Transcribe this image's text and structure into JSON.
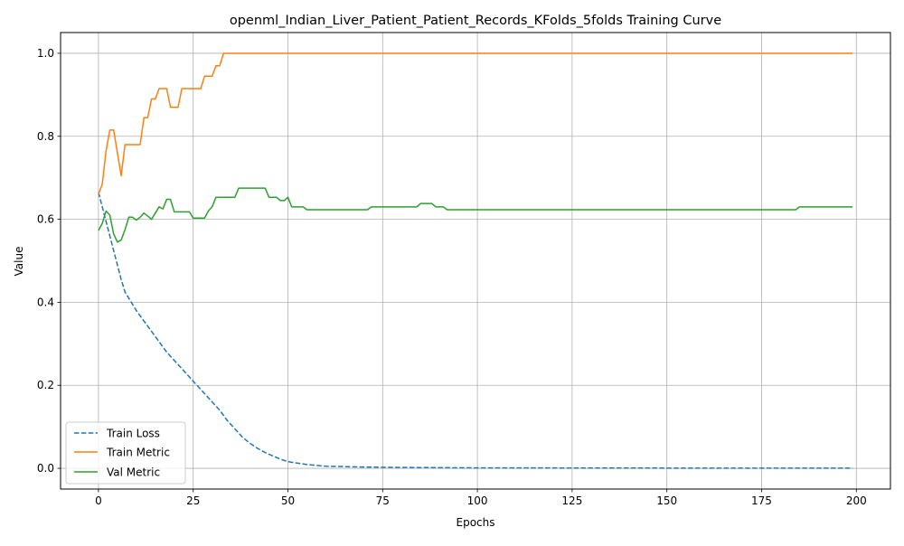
{
  "chart_data": {
    "type": "line",
    "title": "openml_Indian_Liver_Patient_Patient_Records_KFolds_5folds Training Curve",
    "xlabel": "Epochs",
    "ylabel": "Value",
    "xlim": [
      -10,
      209
    ],
    "ylim": [
      -0.05,
      1.05
    ],
    "xticks": [
      0,
      25,
      50,
      75,
      100,
      125,
      150,
      175,
      200
    ],
    "yticks": [
      0.0,
      0.2,
      0.4,
      0.6,
      0.8,
      1.0
    ],
    "xtick_labels": [
      "0",
      "25",
      "50",
      "75",
      "100",
      "125",
      "150",
      "175",
      "200"
    ],
    "ytick_labels": [
      "0.0",
      "0.2",
      "0.4",
      "0.6",
      "0.8",
      "1.0"
    ],
    "grid": true,
    "legend_position": "lower-left",
    "series": [
      {
        "name": "Train Loss",
        "color": "#1f77b4",
        "style": "dashed",
        "x": [
          0,
          1,
          2,
          3,
          4,
          5,
          6,
          7,
          8,
          10,
          12,
          14,
          16,
          18,
          20,
          22,
          24,
          26,
          28,
          30,
          32,
          34,
          36,
          38,
          40,
          42,
          44,
          46,
          48,
          50,
          55,
          60,
          70,
          80,
          100,
          150,
          199
        ],
        "y": [
          0.665,
          0.63,
          0.595,
          0.56,
          0.525,
          0.49,
          0.455,
          0.425,
          0.41,
          0.38,
          0.355,
          0.33,
          0.305,
          0.28,
          0.26,
          0.24,
          0.22,
          0.2,
          0.18,
          0.16,
          0.14,
          0.115,
          0.095,
          0.075,
          0.06,
          0.048,
          0.038,
          0.03,
          0.022,
          0.016,
          0.009,
          0.005,
          0.003,
          0.002,
          0.001,
          0.0005,
          0.0003
        ]
      },
      {
        "name": "Train Metric",
        "color": "#ff7f0e",
        "style": "solid",
        "x": [
          0,
          1,
          2,
          3,
          4,
          5,
          6,
          7,
          8,
          9,
          10,
          11,
          12,
          13,
          14,
          15,
          16,
          17,
          18,
          19,
          20,
          21,
          22,
          23,
          24,
          25,
          26,
          27,
          28,
          29,
          30,
          31,
          32,
          33,
          34,
          199
        ],
        "y": [
          0.66,
          0.685,
          0.765,
          0.815,
          0.815,
          0.76,
          0.705,
          0.78,
          0.78,
          0.78,
          0.78,
          0.78,
          0.845,
          0.845,
          0.89,
          0.89,
          0.915,
          0.915,
          0.915,
          0.87,
          0.87,
          0.87,
          0.915,
          0.915,
          0.915,
          0.915,
          0.915,
          0.915,
          0.945,
          0.945,
          0.945,
          0.97,
          0.97,
          1.0,
          1.0,
          1.0
        ]
      },
      {
        "name": "Val Metric",
        "color": "#2ca02c",
        "style": "solid",
        "x": [
          0,
          1,
          2,
          3,
          4,
          5,
          6,
          7,
          8,
          9,
          10,
          11,
          12,
          13,
          14,
          15,
          16,
          17,
          18,
          19,
          20,
          21,
          22,
          23,
          24,
          25,
          26,
          27,
          28,
          29,
          30,
          31,
          32,
          33,
          34,
          35,
          36,
          37,
          38,
          44,
          45,
          46,
          47,
          48,
          49,
          50,
          51,
          52,
          53,
          54,
          55,
          56,
          71,
          72,
          73,
          74,
          84,
          85,
          86,
          87,
          88,
          89,
          90,
          91,
          92,
          93,
          183,
          184,
          185,
          199
        ],
        "y": [
          0.573,
          0.59,
          0.62,
          0.61,
          0.565,
          0.545,
          0.55,
          0.575,
          0.605,
          0.605,
          0.598,
          0.605,
          0.615,
          0.608,
          0.6,
          0.615,
          0.63,
          0.625,
          0.648,
          0.648,
          0.618,
          0.618,
          0.618,
          0.618,
          0.618,
          0.603,
          0.603,
          0.603,
          0.603,
          0.62,
          0.63,
          0.653,
          0.653,
          0.653,
          0.653,
          0.653,
          0.653,
          0.675,
          0.675,
          0.675,
          0.653,
          0.653,
          0.653,
          0.645,
          0.645,
          0.653,
          0.63,
          0.63,
          0.63,
          0.63,
          0.623,
          0.623,
          0.623,
          0.63,
          0.63,
          0.63,
          0.63,
          0.638,
          0.638,
          0.638,
          0.638,
          0.63,
          0.63,
          0.63,
          0.623,
          0.623,
          0.623,
          0.623,
          0.63,
          0.63
        ]
      }
    ]
  }
}
